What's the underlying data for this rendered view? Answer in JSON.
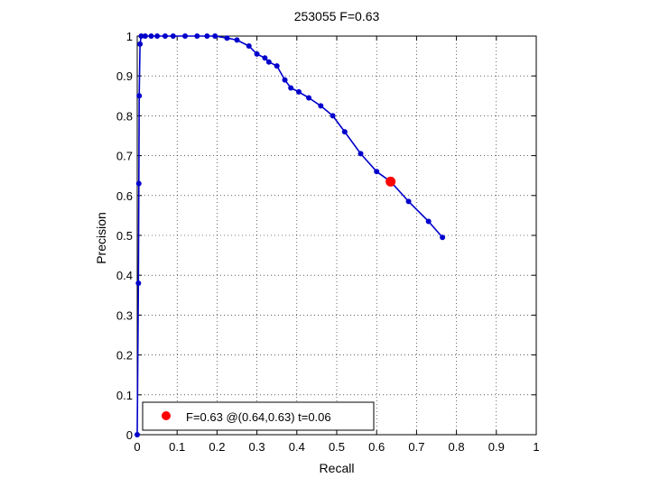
{
  "chart_data": {
    "type": "line",
    "title": "253055 F=0.63",
    "xlabel": "Recall",
    "ylabel": "Precision",
    "xlim": [
      0,
      1
    ],
    "ylim": [
      0,
      1
    ],
    "xticks": [
      "0",
      "0.1",
      "0.2",
      "0.3",
      "0.4",
      "0.5",
      "0.6",
      "0.7",
      "0.8",
      "0.9",
      "1"
    ],
    "yticks": [
      "0",
      "0.1",
      "0.2",
      "0.3",
      "0.4",
      "0.5",
      "0.6",
      "0.7",
      "0.8",
      "0.9",
      "1"
    ],
    "grid": true,
    "legend_position": "bottom-left",
    "series": [
      {
        "color": "#0000cc",
        "points": [
          [
            0.0,
            0.0
          ],
          [
            0.003,
            0.38
          ],
          [
            0.004,
            0.63
          ],
          [
            0.005,
            0.85
          ],
          [
            0.007,
            0.98
          ],
          [
            0.01,
            1.0
          ],
          [
            0.02,
            1.0
          ],
          [
            0.035,
            1.0
          ],
          [
            0.05,
            1.0
          ],
          [
            0.07,
            1.0
          ],
          [
            0.09,
            1.0
          ],
          [
            0.12,
            1.0
          ],
          [
            0.15,
            1.0
          ],
          [
            0.175,
            1.0
          ],
          [
            0.195,
            1.0
          ],
          [
            0.225,
            0.995
          ],
          [
            0.25,
            0.99
          ],
          [
            0.28,
            0.975
          ],
          [
            0.3,
            0.955
          ],
          [
            0.32,
            0.945
          ],
          [
            0.33,
            0.935
          ],
          [
            0.35,
            0.925
          ],
          [
            0.37,
            0.89
          ],
          [
            0.385,
            0.87
          ],
          [
            0.405,
            0.86
          ],
          [
            0.43,
            0.845
          ],
          [
            0.46,
            0.825
          ],
          [
            0.49,
            0.8
          ],
          [
            0.52,
            0.76
          ],
          [
            0.56,
            0.705
          ],
          [
            0.6,
            0.66
          ],
          [
            0.635,
            0.635
          ],
          [
            0.68,
            0.585
          ],
          [
            0.73,
            0.535
          ],
          [
            0.765,
            0.495
          ]
        ]
      }
    ],
    "highlight": {
      "label": "F=0.63 @(0.64,0.63) t=0.06",
      "x": 0.635,
      "y": 0.635,
      "color": "#ff0000"
    }
  }
}
